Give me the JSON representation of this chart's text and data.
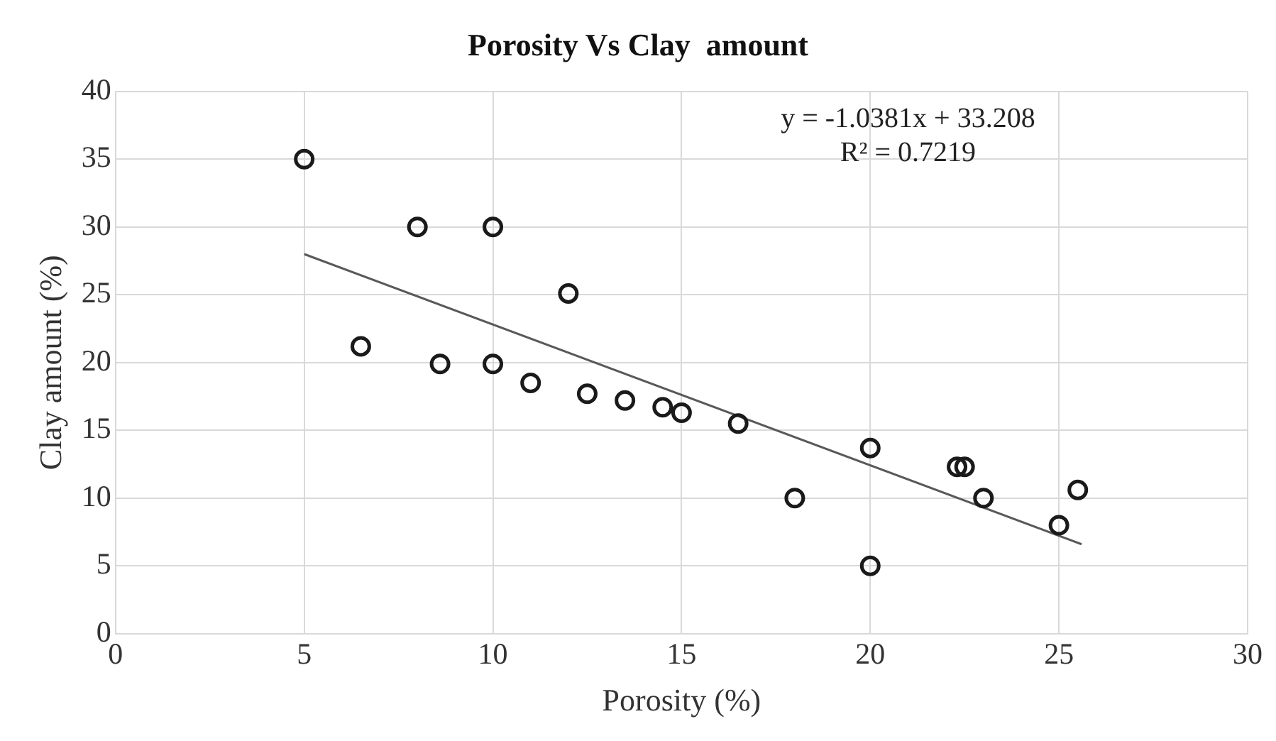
{
  "chart_data": {
    "type": "scatter",
    "title": "Porosity Vs Clay  amount",
    "xlabel": "Porosity (%)",
    "ylabel": "Clay amount (%)",
    "xlim": [
      0,
      30
    ],
    "xticks": [
      0,
      5,
      10,
      15,
      20,
      25,
      30
    ],
    "ylim": [
      0,
      40
    ],
    "yticks": [
      0,
      5,
      10,
      15,
      20,
      25,
      30,
      35,
      40
    ],
    "grid": true,
    "legend": false,
    "marker": "circle",
    "series": [
      {
        "type": "scatter",
        "color": "#1a1a1a",
        "x": [
          5,
          6.5,
          8,
          8.6,
          10,
          10,
          11,
          12,
          12.5,
          13.5,
          14.5,
          15,
          16.5,
          18,
          20,
          20,
          22.3,
          22.5,
          23,
          25,
          25.5
        ],
        "values": [
          35,
          21.2,
          30,
          19.9,
          30,
          19.9,
          18.5,
          25.1,
          17.7,
          17.2,
          16.7,
          16.3,
          15.5,
          10,
          13.7,
          5,
          12.3,
          12.3,
          10,
          8,
          10.6
        ]
      },
      {
        "type": "line",
        "color": "#595959",
        "marker": "none",
        "x": [
          5,
          25.6
        ],
        "values": [
          28.0,
          6.6
        ]
      }
    ],
    "annotations": [
      "y = -1.0381x + 33.208",
      "R² = 0.7219"
    ]
  }
}
